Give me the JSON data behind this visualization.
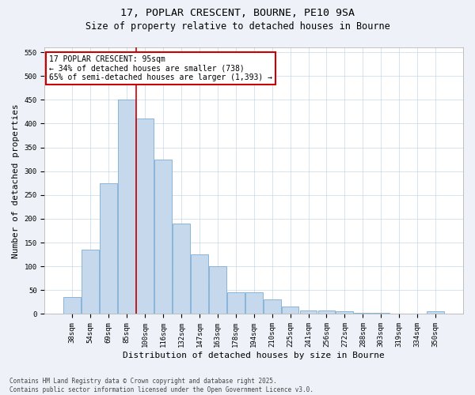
{
  "title1": "17, POPLAR CRESCENT, BOURNE, PE10 9SA",
  "title2": "Size of property relative to detached houses in Bourne",
  "xlabel": "Distribution of detached houses by size in Bourne",
  "ylabel": "Number of detached properties",
  "categories": [
    "38sqm",
    "54sqm",
    "69sqm",
    "85sqm",
    "100sqm",
    "116sqm",
    "132sqm",
    "147sqm",
    "163sqm",
    "178sqm",
    "194sqm",
    "210sqm",
    "225sqm",
    "241sqm",
    "256sqm",
    "272sqm",
    "288sqm",
    "303sqm",
    "319sqm",
    "334sqm",
    "350sqm"
  ],
  "values": [
    35,
    135,
    275,
    450,
    410,
    325,
    190,
    125,
    100,
    45,
    45,
    30,
    15,
    8,
    8,
    5,
    3,
    2,
    1,
    1,
    6
  ],
  "bar_color": "#c5d8ec",
  "bar_edge_color": "#7aadd4",
  "vline_x": 3.5,
  "property_label": "17 POPLAR CRESCENT: 95sqm",
  "annotation_line1": "← 34% of detached houses are smaller (738)",
  "annotation_line2": "65% of semi-detached houses are larger (1,393) →",
  "annotation_box_color": "#ffffff",
  "annotation_box_edge": "#cc0000",
  "vline_color": "#cc0000",
  "ylim": [
    0,
    560
  ],
  "yticks": [
    0,
    50,
    100,
    150,
    200,
    250,
    300,
    350,
    400,
    450,
    500,
    550
  ],
  "title_fontsize": 9.5,
  "subtitle_fontsize": 8.5,
  "tick_fontsize": 6.5,
  "label_fontsize": 8,
  "annot_fontsize": 7,
  "footer_text": "Contains HM Land Registry data © Crown copyright and database right 2025.\nContains public sector information licensed under the Open Government Licence v3.0.",
  "background_color": "#eef2f8",
  "plot_bg_color": "#ffffff"
}
